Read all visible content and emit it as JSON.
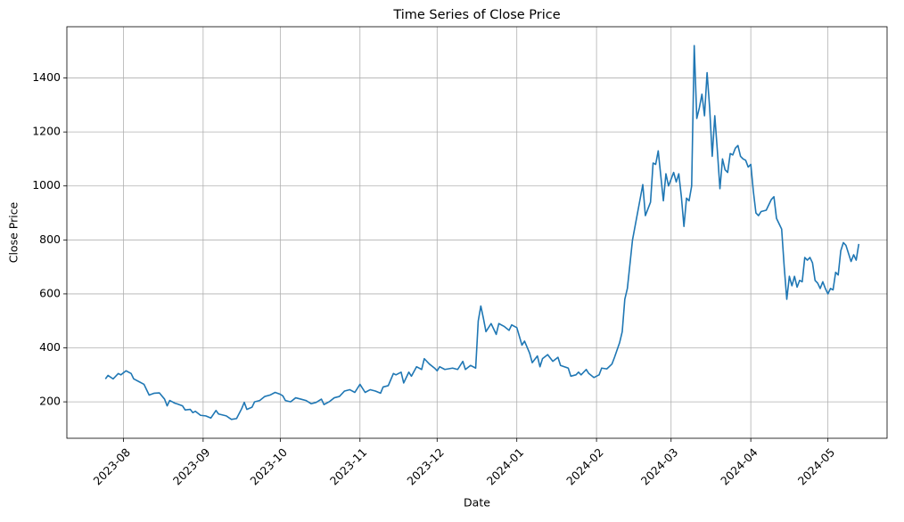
{
  "chart_data": {
    "type": "line",
    "title": "Time Series of Close Price",
    "x_label": "Date",
    "y_label": "Close Price",
    "x": [
      0,
      1,
      3,
      5,
      6,
      8,
      10,
      11,
      13,
      15,
      16,
      17,
      19,
      21,
      23,
      24,
      25,
      27,
      28,
      30,
      31,
      33,
      34,
      35,
      37,
      39,
      41,
      43,
      44,
      47,
      49,
      51,
      53,
      54,
      55,
      57,
      58,
      60,
      62,
      64,
      66,
      68,
      69,
      70,
      72,
      74,
      76,
      78,
      80,
      82,
      84,
      85,
      87,
      89,
      91,
      93,
      95,
      97,
      99,
      101,
      103,
      105,
      107,
      108,
      110,
      112,
      113,
      115,
      116,
      118,
      119,
      121,
      123,
      124,
      126,
      128,
      129,
      130,
      132,
      135,
      137,
      139,
      140,
      142,
      144,
      145,
      146,
      147,
      148,
      150,
      152,
      153,
      155,
      157,
      158,
      160,
      162,
      163,
      165,
      166,
      168,
      169,
      170,
      172,
      174,
      176,
      177,
      180,
      181,
      183,
      184,
      185,
      187,
      188,
      190,
      192,
      193,
      195,
      197,
      198,
      200,
      201,
      202,
      203,
      205,
      209,
      210,
      212,
      213,
      214,
      215,
      217,
      218,
      219,
      221,
      222,
      223,
      224,
      225,
      226,
      227,
      228,
      229,
      230,
      231,
      232,
      233,
      234,
      235,
      236,
      237,
      238,
      239,
      240,
      241,
      242,
      243,
      244,
      245,
      246,
      247,
      248,
      249,
      250,
      251,
      252,
      253,
      254,
      255,
      257,
      259,
      260,
      261,
      262,
      263,
      264,
      265,
      266,
      267,
      268,
      269,
      270,
      271,
      272,
      273,
      274,
      275,
      276,
      277,
      278,
      279,
      280,
      281,
      282,
      283,
      284,
      285,
      286,
      287,
      288,
      290,
      291,
      292,
      293
    ],
    "series": [
      {
        "name": "Close Price",
        "color": "#1f77b4",
        "values": [
          285,
          298,
          285,
          305,
          300,
          315,
          305,
          285,
          275,
          265,
          245,
          225,
          232,
          233,
          210,
          185,
          205,
          195,
          192,
          185,
          170,
          172,
          160,
          165,
          150,
          148,
          140,
          168,
          155,
          148,
          135,
          138,
          175,
          198,
          172,
          180,
          200,
          205,
          220,
          225,
          235,
          228,
          222,
          205,
          200,
          215,
          210,
          205,
          193,
          198,
          210,
          190,
          200,
          215,
          220,
          240,
          245,
          235,
          265,
          235,
          245,
          240,
          232,
          255,
          260,
          305,
          300,
          310,
          270,
          310,
          295,
          330,
          320,
          360,
          340,
          325,
          315,
          330,
          320,
          325,
          320,
          350,
          320,
          335,
          325,
          500,
          555,
          510,
          460,
          490,
          450,
          490,
          480,
          465,
          485,
          475,
          410,
          425,
          380,
          345,
          370,
          330,
          360,
          375,
          350,
          365,
          335,
          325,
          295,
          300,
          310,
          300,
          320,
          305,
          290,
          300,
          325,
          322,
          340,
          365,
          420,
          460,
          580,
          620,
          800,
          1005,
          890,
          940,
          1085,
          1080,
          1130,
          945,
          1045,
          1000,
          1050,
          1015,
          1045,
          960,
          850,
          955,
          945,
          1000,
          1520,
          1250,
          1290,
          1340,
          1260,
          1420,
          1290,
          1110,
          1260,
          1130,
          990,
          1100,
          1060,
          1050,
          1120,
          1115,
          1140,
          1150,
          1110,
          1100,
          1095,
          1070,
          1080,
          980,
          900,
          890,
          905,
          910,
          950,
          960,
          880,
          860,
          840,
          700,
          580,
          665,
          630,
          665,
          625,
          650,
          645,
          735,
          725,
          735,
          715,
          650,
          640,
          620,
          645,
          620,
          600,
          620,
          615,
          680,
          670,
          760,
          790,
          780,
          720,
          745,
          725,
          785
        ]
      }
    ],
    "xlim": [
      -15,
      304
    ],
    "xticks": [
      {
        "value": 7,
        "label": "2023-08"
      },
      {
        "value": 38,
        "label": "2023-09"
      },
      {
        "value": 68,
        "label": "2023-10"
      },
      {
        "value": 99,
        "label": "2023-11"
      },
      {
        "value": 129,
        "label": "2023-12"
      },
      {
        "value": 160,
        "label": "2024-01"
      },
      {
        "value": 191,
        "label": "2024-02"
      },
      {
        "value": 220,
        "label": "2024-03"
      },
      {
        "value": 251,
        "label": "2024-04"
      },
      {
        "value": 281,
        "label": "2024-05"
      }
    ],
    "ylim": [
      65,
      1590
    ],
    "yticks": [
      200,
      400,
      600,
      800,
      1000,
      1200,
      1400
    ],
    "grid": true
  }
}
